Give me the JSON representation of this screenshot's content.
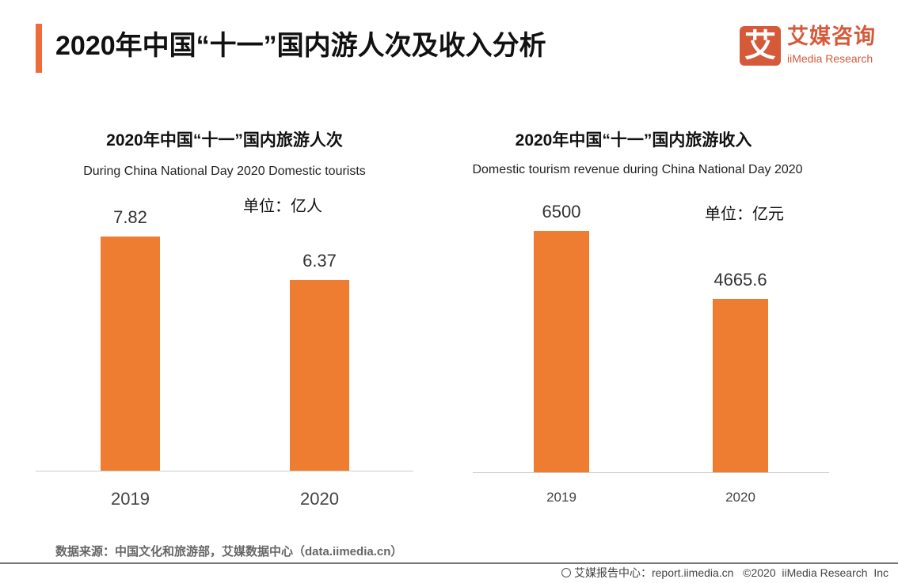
{
  "header": {
    "title": "2020年中国“十一”国内游人次及收入分析",
    "logo_glyph": "艾",
    "logo_cn": "艾媒咨询",
    "logo_en": "iiMedia Research",
    "accent_color": "#ef6b37"
  },
  "chart_data": [
    {
      "type": "bar",
      "title": "2020年中国“十一”国内旅游人次",
      "subtitle": "During China National Day 2020 Domestic tourists",
      "unit": "单位：亿人",
      "categories": [
        "2019",
        "2020"
      ],
      "values": [
        7.82,
        6.37
      ],
      "value_labels": [
        "7.82",
        "6.37"
      ],
      "color": "#ee7d32",
      "grid": false
    },
    {
      "type": "bar",
      "title": "2020年中国“十一”国内旅游收入",
      "subtitle": "Domestic tourism revenue during China National Day 2020",
      "unit": "单位：亿元",
      "categories": [
        "2019",
        "2020"
      ],
      "values": [
        6500,
        4665.6
      ],
      "value_labels": [
        "6500",
        "4665.6"
      ],
      "color": "#ee7d32",
      "grid": false
    }
  ],
  "footer": {
    "source": "数据来源：中国文化和旅游部，艾媒数据中心（data.iimedia.cn）",
    "copyright": "艾媒报告中心：report.iimedia.cn   ©2020  iiMedia Research  Inc"
  }
}
